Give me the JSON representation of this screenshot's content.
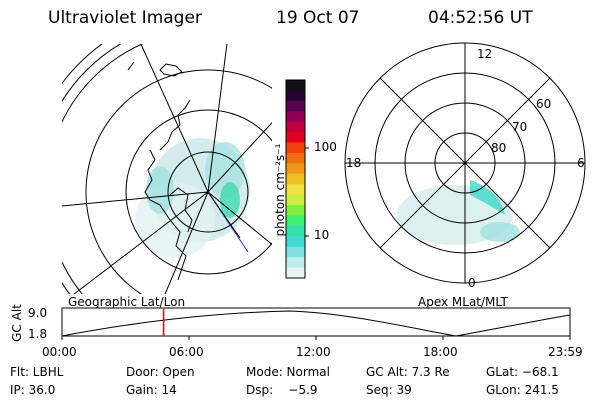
{
  "header": {
    "instrument": "Ultraviolet Imager",
    "date": "19 Oct 07",
    "time": "04:52:56 UT"
  },
  "colorbar": {
    "unit_label": "photon cm⁻²s⁻¹",
    "ticks": [
      "100",
      "10"
    ],
    "colors": [
      "#101018",
      "#2a0030",
      "#5a0050",
      "#900050",
      "#c00040",
      "#e00020",
      "#f04010",
      "#f07010",
      "#f09818",
      "#f0c020",
      "#f0e040",
      "#c8f040",
      "#80f040",
      "#40f070",
      "#30e0b0",
      "#40d8d0",
      "#80e0e0",
      "#c0ecec",
      "#e8f4f4"
    ]
  },
  "geo_panel": {
    "footer_label": "Geographic Lat/Lon"
  },
  "apex_panel": {
    "footer_label": "Apex MLat/MLT",
    "mlt_labels": {
      "top": "12",
      "left": "18",
      "right": "6",
      "bottom": "0"
    },
    "lat_labels": [
      "60",
      "70",
      "80"
    ]
  },
  "orbit_plot": {
    "ylabel": "GC Alt",
    "y_ticks": [
      "9.0",
      "1.8"
    ],
    "x_ticks": [
      "00:00",
      "06:00",
      "12:00",
      "18:00",
      "23:59"
    ],
    "current_time_fraction": 0.2
  },
  "info": {
    "row1": {
      "filter": "Flt: LBHL",
      "door": "Door: Open",
      "mode": "Mode: Normal",
      "gc_alt": "GC Alt: 7.3 Re",
      "glat": "GLat: −68.1"
    },
    "row2": {
      "ip": "IP: 36.0",
      "gain": "Gain: 14",
      "dsp": "Dsp:    −5.9",
      "seq": "Seq: 39",
      "glon": "GLon: 241.5"
    }
  }
}
